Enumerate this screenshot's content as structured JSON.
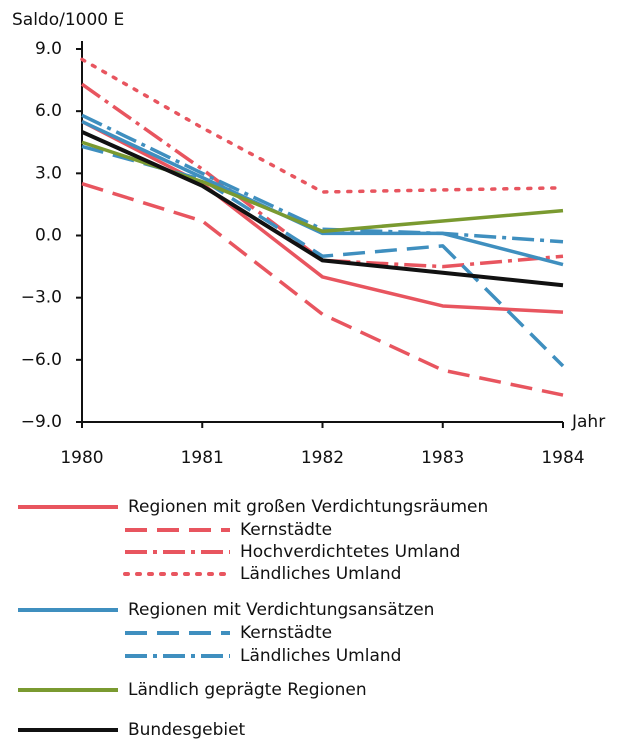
{
  "chart_data": {
    "type": "line",
    "ylabel": "Saldo/1000 E",
    "xlabel": "Jahr",
    "x": [
      1980,
      1981,
      1982,
      1983,
      1984
    ],
    "xlim": [
      1980,
      1984
    ],
    "xticks": [
      1980,
      1981,
      1982,
      1983,
      1984
    ],
    "ylim": [
      -9,
      9
    ],
    "yticks": [
      {
        "value": -9,
        "label": "−9.0"
      },
      {
        "value": -6,
        "label": "−6.0"
      },
      {
        "value": -3,
        "label": "−3.0"
      },
      {
        "value": 0,
        "label": "0.0"
      },
      {
        "value": 3,
        "label": "3.0"
      },
      {
        "value": 6,
        "label": "6.0"
      },
      {
        "value": 9,
        "label": "9.0"
      }
    ],
    "series": [
      {
        "name": "Regionen mit großen Verdichtungsräumen",
        "color": "#e8555f",
        "dash": "solid",
        "values": [
          5.5,
          2.5,
          -2.0,
          -3.4,
          -3.7
        ]
      },
      {
        "name": "Kernstädte",
        "color": "#e8555f",
        "dash": "dashed",
        "values": [
          2.5,
          0.7,
          -3.8,
          -6.5,
          -7.7
        ]
      },
      {
        "name": "Hochverdichtetes Umland",
        "color": "#e8555f",
        "dash": "dashdot",
        "values": [
          7.3,
          3.2,
          -1.2,
          -1.5,
          -1.0
        ]
      },
      {
        "name": "Ländliches Umland",
        "color": "#e8555f",
        "dash": "dotted",
        "values": [
          8.5,
          5.2,
          2.1,
          2.2,
          2.3
        ]
      },
      {
        "name": "Regionen mit Verdichtungsansätzen",
        "color": "#3f8fbf",
        "dash": "solid",
        "values": [
          5.5,
          2.8,
          0.1,
          0.1,
          -1.4
        ]
      },
      {
        "name": "Kernstädte",
        "color": "#3f8fbf",
        "dash": "dashed",
        "values": [
          4.3,
          2.7,
          -1.0,
          -0.5,
          -6.3
        ]
      },
      {
        "name": "Ländliches Umland",
        "color": "#3f8fbf",
        "dash": "dashdot",
        "values": [
          5.8,
          3.0,
          0.3,
          0.1,
          -0.3
        ]
      },
      {
        "name": "Ländlich geprägte Regionen",
        "color": "#7a9a30",
        "dash": "solid",
        "values": [
          4.5,
          2.6,
          0.2,
          0.7,
          1.2
        ]
      },
      {
        "name": "Bundesgebiet",
        "color": "#111111",
        "dash": "solid",
        "values": [
          5.0,
          2.4,
          -1.2,
          -1.8,
          -2.4
        ]
      }
    ]
  }
}
